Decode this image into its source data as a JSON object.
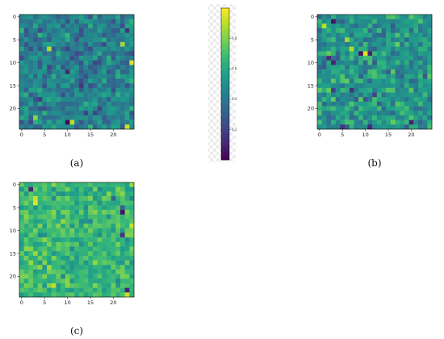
{
  "chart_data": [
    {
      "type": "heatmap",
      "caption": "(a)",
      "rows": 25,
      "cols": 25,
      "xticks": [
        0,
        5,
        10,
        15,
        20
      ],
      "yticks": [
        0,
        5,
        10,
        15,
        20
      ],
      "value_range": [
        0,
        1
      ],
      "highlights": [
        [
          3,
          23,
          0.15
        ],
        [
          7,
          6,
          0.88
        ],
        [
          10,
          24,
          0.95
        ],
        [
          11,
          6,
          0.22
        ],
        [
          12,
          10,
          0.12
        ],
        [
          6,
          22,
          0.85
        ],
        [
          22,
          3,
          0.82
        ],
        [
          23,
          10,
          0.02
        ],
        [
          23,
          11,
          0.9
        ],
        [
          24,
          23,
          0.93
        ],
        [
          15,
          13,
          0.15
        ],
        [
          18,
          4,
          0.18
        ]
      ]
    },
    {
      "type": "heatmap",
      "caption": "(b)",
      "rows": 25,
      "cols": 25,
      "xticks": [
        0,
        5,
        10,
        15,
        20
      ],
      "yticks": [
        0,
        5,
        10,
        15,
        20
      ],
      "value_range": [
        0,
        1
      ],
      "highlights": [
        [
          1,
          3,
          0.05
        ],
        [
          2,
          1,
          0.9
        ],
        [
          5,
          6,
          0.85
        ],
        [
          7,
          7,
          0.88
        ],
        [
          8,
          9,
          0.05
        ],
        [
          8,
          10,
          0.95
        ],
        [
          8,
          11,
          0.1
        ],
        [
          9,
          2,
          0.12
        ],
        [
          10,
          3,
          0.1
        ],
        [
          16,
          3,
          0.2
        ],
        [
          16,
          7,
          0.15
        ],
        [
          17,
          12,
          0.2
        ],
        [
          24,
          5,
          0.15
        ],
        [
          24,
          11,
          0.12
        ],
        [
          23,
          20,
          0.1
        ]
      ]
    },
    {
      "type": "heatmap",
      "caption": "(c)",
      "rows": 25,
      "cols": 25,
      "xticks": [
        0,
        5,
        10,
        15,
        20
      ],
      "yticks": [
        0,
        5,
        10,
        15,
        20
      ],
      "value_range": [
        0,
        1
      ],
      "highlights": [
        [
          1,
          2,
          0.1
        ],
        [
          3,
          3,
          0.92
        ],
        [
          4,
          3,
          0.95
        ],
        [
          6,
          7,
          0.82
        ],
        [
          6,
          22,
          0.05
        ],
        [
          5,
          22,
          0.3
        ],
        [
          9,
          24,
          0.92
        ],
        [
          11,
          22,
          0.15
        ],
        [
          15,
          3,
          0.85
        ],
        [
          22,
          7,
          0.9
        ],
        [
          23,
          23,
          0.1
        ],
        [
          24,
          23,
          0.92
        ],
        [
          3,
          20,
          0.3
        ]
      ]
    }
  ],
  "colorbar": {
    "ticks": [
      0.2,
      0.4,
      0.6,
      0.8
    ],
    "tick_labels": [
      "0.2",
      "0.4",
      "0.6",
      "0.8"
    ],
    "range": [
      0,
      1
    ]
  }
}
